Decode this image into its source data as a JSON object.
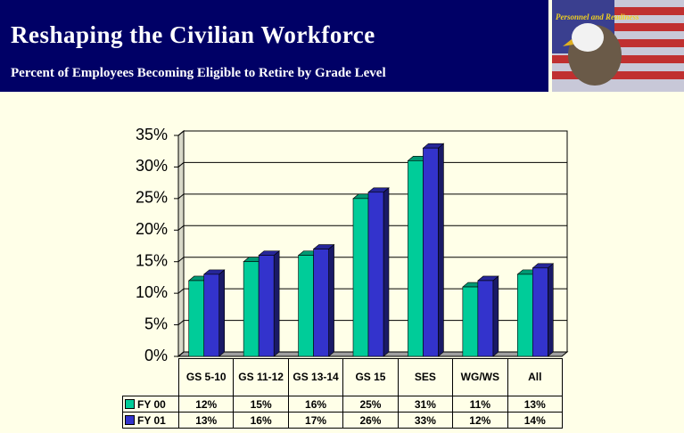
{
  "header": {
    "title": "Reshaping the Civilian Workforce",
    "subtitle": "Percent of Employees Becoming Eligible to Retire by Grade Level",
    "logo_text": "Personnel and Readiness"
  },
  "chart_data": {
    "type": "bar",
    "categories": [
      "GS 5-10",
      "GS 11-12",
      "GS 13-14",
      "GS 15",
      "SES",
      "WG/WS",
      "All"
    ],
    "series": [
      {
        "name": "FY 00",
        "color": "#00cc99",
        "values": [
          12,
          15,
          16,
          25,
          31,
          11,
          13
        ],
        "value_labels": [
          "12%",
          "15%",
          "16%",
          "25%",
          "31%",
          "11%",
          "13%"
        ]
      },
      {
        "name": "FY 01",
        "color": "#3333cc",
        "values": [
          13,
          16,
          17,
          26,
          33,
          12,
          14
        ],
        "value_labels": [
          "13%",
          "16%",
          "17%",
          "26%",
          "33%",
          "12%",
          "14%"
        ]
      }
    ],
    "ylim": [
      0,
      35
    ],
    "yticks": [
      {
        "value": 0,
        "label": "0%"
      },
      {
        "value": 5,
        "label": "5%"
      },
      {
        "value": 10,
        "label": "10%"
      },
      {
        "value": 15,
        "label": "15%"
      },
      {
        "value": 20,
        "label": "20%"
      },
      {
        "value": 25,
        "label": "25%"
      },
      {
        "value": 30,
        "label": "30%"
      },
      {
        "value": 35,
        "label": "35%"
      }
    ],
    "grid": true
  }
}
